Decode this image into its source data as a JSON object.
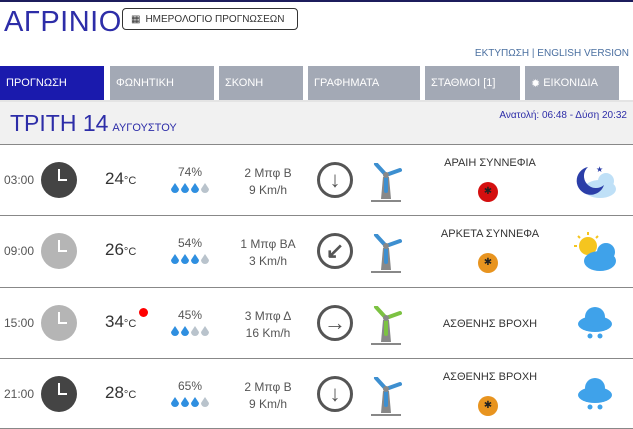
{
  "header": {
    "city": "ΑΓΡΙΝΙΟ",
    "calendar_button": "ΗΜΕΡΟΛΟΓΙΟ ΠΡΟΓΝΩΣΕΩΝ",
    "print_link": "ΕΚΤΥΠΩΣΗ",
    "separator": " | ",
    "english_link": "ENGLISH VERSION"
  },
  "tabs": [
    {
      "label": "ΠΡΟΓΝΩΣΗ",
      "active": true
    },
    {
      "label": "ΦΩΝΗΤΙΚΗ"
    },
    {
      "label": "ΣΚΟΝΗ"
    },
    {
      "label": "ΓΡΑΦΗΜΑΤΑ"
    },
    {
      "label": "ΣΤΑΘΜΟΙ [1]"
    },
    {
      "label": "ΕΙΚΟΝΙΔΙΑ",
      "icon": "gear-icon"
    }
  ],
  "date": {
    "day": "ΤΡΙΤΗ 14",
    "month": "ΑΥΓΟΥΣΤΟΥ",
    "sun": "Ανατολή: 06:48 - Δύση 20:32"
  },
  "colors": {
    "accent": "#1a1aad",
    "tab": "#a3a9b5",
    "title": "#2d2da8"
  },
  "rows": [
    {
      "time": "03:00",
      "night": true,
      "temp": "24",
      "unit": "°C",
      "hot": false,
      "humidity": "74%",
      "drops": 3,
      "wind_beaufort": "2 Μπφ Β",
      "wind_speed": "9 Km/h",
      "arrow": "↓",
      "turbine_color": "#3d8fd0",
      "description": "ΑΡΑΙΗ ΣΥΝΝΕΦΙΑ",
      "mosquito": "red",
      "weather_icon": "night-partly-cloudy-icon"
    },
    {
      "time": "09:00",
      "night": false,
      "temp": "26",
      "unit": "°C",
      "hot": false,
      "humidity": "54%",
      "drops": 3,
      "wind_beaufort": "1 Μπφ ΒΑ",
      "wind_speed": "3 Km/h",
      "arrow": "↙",
      "turbine_color": "#3d8fd0",
      "description": "ΑΡΚΕΤΑ ΣΥΝΝΕΦΑ",
      "mosquito": "orange",
      "weather_icon": "sun-cloud-icon"
    },
    {
      "time": "15:00",
      "night": false,
      "temp": "34",
      "unit": "°C",
      "hot": true,
      "humidity": "45%",
      "drops": 2,
      "wind_beaufort": "3 Μπφ Δ",
      "wind_speed": "16 Km/h",
      "arrow": "→",
      "turbine_color": "#7cc242",
      "description": "ΑΣΘΕΝΗΣ ΒΡΟΧΗ",
      "mosquito": null,
      "weather_icon": "rain-icon"
    },
    {
      "time": "21:00",
      "night": true,
      "temp": "28",
      "unit": "°C",
      "hot": false,
      "humidity": "65%",
      "drops": 3,
      "wind_beaufort": "2 Μπφ Β",
      "wind_speed": "9 Km/h",
      "arrow": "↓",
      "turbine_color": "#3d8fd0",
      "description": "ΑΣΘΕΝΗΣ ΒΡΟΧΗ",
      "mosquito": "orange",
      "weather_icon": "rain-icon"
    }
  ]
}
